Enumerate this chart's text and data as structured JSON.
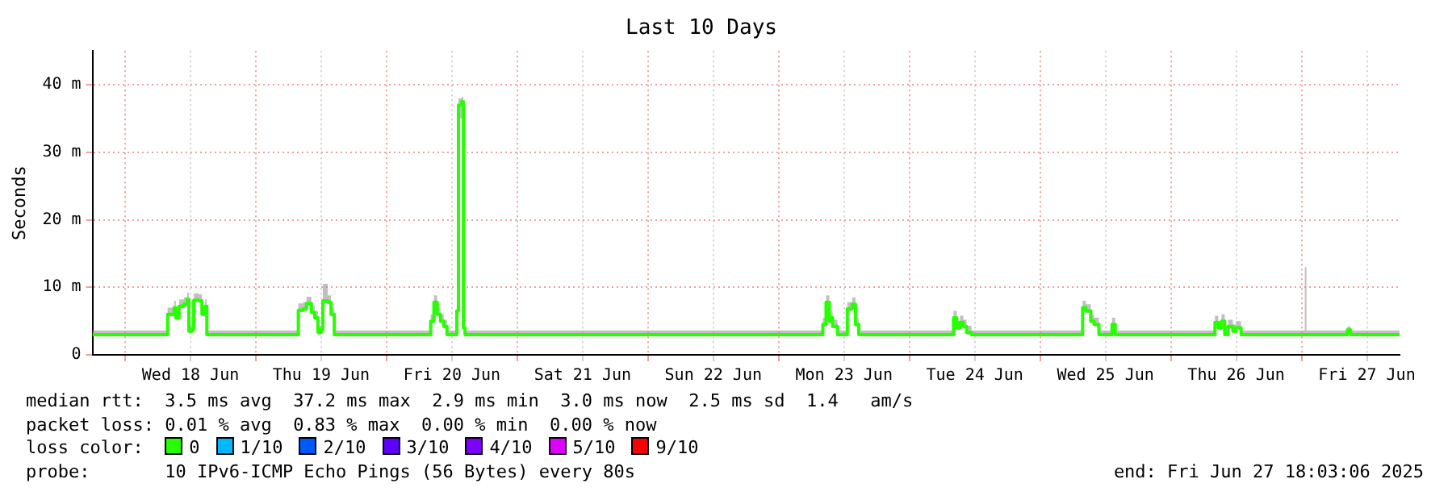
{
  "chart_data": {
    "type": "step",
    "title": "Last 10 Days",
    "ylabel": "Seconds",
    "legend_title": "loss color:",
    "legend": "bottom",
    "grid": true,
    "xlim": [
      "2025-06-17T18:00",
      "2025-06-27T18:00"
    ],
    "xticks": [
      {
        "value": "2025-06-18T00:00",
        "label": null
      },
      {
        "value": "2025-06-18T12:00",
        "label": "Wed 18 Jun"
      },
      {
        "value": "2025-06-19T00:00",
        "label": null
      },
      {
        "value": "2025-06-19T12:00",
        "label": "Thu 19 Jun"
      },
      {
        "value": "2025-06-20T00:00",
        "label": null
      },
      {
        "value": "2025-06-20T12:00",
        "label": "Fri 20 Jun"
      },
      {
        "value": "2025-06-21T00:00",
        "label": null
      },
      {
        "value": "2025-06-21T12:00",
        "label": "Sat 21 Jun"
      },
      {
        "value": "2025-06-22T00:00",
        "label": null
      },
      {
        "value": "2025-06-22T12:00",
        "label": "Sun 22 Jun"
      },
      {
        "value": "2025-06-23T00:00",
        "label": null
      },
      {
        "value": "2025-06-23T12:00",
        "label": "Mon 23 Jun"
      },
      {
        "value": "2025-06-24T00:00",
        "label": null
      },
      {
        "value": "2025-06-24T12:00",
        "label": "Tue 24 Jun"
      },
      {
        "value": "2025-06-25T00:00",
        "label": null
      },
      {
        "value": "2025-06-25T12:00",
        "label": "Wed 25 Jun"
      },
      {
        "value": "2025-06-26T00:00",
        "label": null
      },
      {
        "value": "2025-06-26T12:00",
        "label": "Thu 26 Jun"
      },
      {
        "value": "2025-06-27T00:00",
        "label": null
      },
      {
        "value": "2025-06-27T12:00",
        "label": "Fri 27 Jun"
      }
    ],
    "ylim": [
      0,
      45
    ],
    "yticks": [
      0,
      {
        "value": 10,
        "label": "10 m"
      },
      {
        "value": 20,
        "label": "20 m"
      },
      {
        "value": 30,
        "label": "30 m"
      },
      {
        "value": 40,
        "label": "40 m"
      }
    ],
    "x": [
      "2025-06-17T18:00",
      "2025-06-18T07:30",
      "2025-06-18T07:48",
      "2025-06-18T09:00",
      "2025-06-18T09:18",
      "2025-06-18T09:54",
      "2025-06-18T10:48",
      "2025-06-18T11:24",
      "2025-06-18T11:42",
      "2025-06-18T12:18",
      "2025-06-18T12:36",
      "2025-06-18T13:30",
      "2025-06-18T14:06",
      "2025-06-18T14:42",
      "2025-06-18T15:00",
      "2025-06-19T07:30",
      "2025-06-19T07:48",
      "2025-06-19T08:42",
      "2025-06-19T09:18",
      "2025-06-19T10:12",
      "2025-06-19T10:48",
      "2025-06-19T11:24",
      "2025-06-19T12:00",
      "2025-06-19T12:18",
      "2025-06-19T13:12",
      "2025-06-19T13:48",
      "2025-06-19T14:24",
      "2025-06-20T07:48",
      "2025-06-20T08:06",
      "2025-06-20T08:42",
      "2025-06-20T09:18",
      "2025-06-20T09:54",
      "2025-06-20T10:30",
      "2025-06-20T11:06",
      "2025-06-20T12:36",
      "2025-06-20T12:54",
      "2025-06-20T13:12",
      "2025-06-20T13:48",
      "2025-06-20T14:06",
      "2025-06-20T14:24",
      "2025-06-23T07:48",
      "2025-06-23T08:06",
      "2025-06-23T08:42",
      "2025-06-23T09:18",
      "2025-06-23T09:36",
      "2025-06-23T09:54",
      "2025-06-23T10:48",
      "2025-06-23T12:18",
      "2025-06-23T12:36",
      "2025-06-23T13:30",
      "2025-06-23T14:06",
      "2025-06-23T14:42",
      "2025-06-24T07:48",
      "2025-06-24T08:06",
      "2025-06-24T08:42",
      "2025-06-24T09:18",
      "2025-06-24T09:54",
      "2025-06-24T10:30",
      "2025-06-24T11:24",
      "2025-06-25T07:30",
      "2025-06-25T07:48",
      "2025-06-25T08:24",
      "2025-06-25T09:18",
      "2025-06-25T09:54",
      "2025-06-25T10:48",
      "2025-06-25T12:18",
      "2025-06-25T13:12",
      "2025-06-25T13:48",
      "2025-06-26T07:48",
      "2025-06-26T08:06",
      "2025-06-26T08:42",
      "2025-06-26T09:18",
      "2025-06-26T09:54",
      "2025-06-26T10:30",
      "2025-06-26T11:24",
      "2025-06-26T12:00",
      "2025-06-26T12:54",
      "2025-06-27T00:18",
      "2025-06-27T00:36",
      "2025-06-27T00:54",
      "2025-06-27T08:06",
      "2025-06-27T08:24",
      "2025-06-27T09:00",
      "2025-06-27T18:00"
    ],
    "series": [
      {
        "name": "0",
        "color": "#26ff00",
        "values": [
          3.0,
          3.0,
          6.0,
          7.0,
          5.5,
          7.2,
          7.5,
          8.2,
          3.5,
          3.8,
          8.1,
          8.0,
          6.0,
          7.2,
          3.0,
          3.0,
          6.6,
          6.8,
          7.6,
          6.3,
          5.5,
          3.3,
          3.8,
          8.0,
          7.8,
          6.0,
          3.0,
          3.0,
          5.0,
          7.8,
          6.0,
          5.0,
          4.2,
          3.0,
          3.0,
          6.5,
          37.0,
          37.5,
          4.0,
          3.0,
          3.0,
          4.5,
          7.8,
          5.0,
          5.5,
          4.2,
          3.0,
          3.0,
          6.8,
          7.5,
          4.5,
          3.0,
          3.0,
          5.5,
          4.0,
          4.8,
          4.2,
          3.3,
          3.0,
          3.0,
          7.0,
          6.5,
          5.0,
          4.5,
          3.0,
          3.0,
          4.5,
          3.0,
          3.0,
          4.8,
          4.0,
          5.0,
          3.0,
          4.2,
          3.5,
          4.0,
          3.0,
          3.0,
          3.0,
          3.0,
          3.0,
          3.7,
          3.0,
          3.0
        ],
        "upper": [
          3.6,
          3.6,
          7.0,
          8.0,
          6.5,
          8.2,
          8.5,
          9.2,
          4.5,
          4.8,
          9.1,
          9.0,
          7.0,
          8.2,
          3.6,
          3.6,
          7.6,
          7.8,
          8.6,
          7.3,
          6.5,
          4.3,
          4.8,
          10.5,
          8.8,
          7.0,
          3.6,
          3.6,
          6.0,
          8.8,
          7.0,
          6.0,
          5.2,
          3.6,
          3.6,
          7.5,
          38.0,
          38.2,
          5.0,
          3.6,
          3.6,
          5.5,
          8.8,
          6.0,
          6.5,
          5.2,
          3.6,
          3.6,
          7.8,
          8.5,
          5.5,
          3.6,
          3.6,
          6.5,
          5.0,
          5.8,
          5.2,
          4.3,
          3.6,
          3.6,
          8.0,
          7.5,
          6.0,
          5.5,
          3.6,
          3.6,
          5.5,
          3.6,
          3.6,
          5.8,
          5.0,
          6.0,
          3.6,
          5.2,
          4.5,
          5.0,
          3.6,
          3.6,
          13.0,
          3.6,
          3.6,
          4.2,
          3.6,
          3.6
        ],
        "lower": [
          2.8,
          2.8,
          5.7,
          6.7,
          5.2,
          6.9,
          7.2,
          7.9,
          3.2,
          3.5,
          7.8,
          7.7,
          5.7,
          6.9,
          2.8,
          2.8,
          6.3,
          6.5,
          7.3,
          6.0,
          5.2,
          3.0,
          3.5,
          7.7,
          7.5,
          5.7,
          2.8,
          2.8,
          4.7,
          7.5,
          5.7,
          4.7,
          3.9,
          2.8,
          2.8,
          6.2,
          35.0,
          36.0,
          3.7,
          2.8,
          2.8,
          4.2,
          7.5,
          4.7,
          5.2,
          3.9,
          2.8,
          2.8,
          6.5,
          7.2,
          4.2,
          2.8,
          2.8,
          5.2,
          3.7,
          4.5,
          3.9,
          3.0,
          2.8,
          2.8,
          6.7,
          6.2,
          4.7,
          4.2,
          2.8,
          2.8,
          4.2,
          2.8,
          2.8,
          4.5,
          3.7,
          4.7,
          2.8,
          3.9,
          3.2,
          3.7,
          2.8,
          2.8,
          2.8,
          2.8,
          2.8,
          3.4,
          2.8,
          2.8
        ]
      },
      {
        "name": "1/10",
        "color": "#00b8ff",
        "values": [
          null,
          null,
          null,
          null,
          null,
          null,
          null,
          null,
          null,
          null,
          null,
          null,
          null,
          null,
          null,
          null,
          null,
          null,
          null,
          null,
          null,
          null,
          null,
          null,
          null,
          null,
          null,
          null,
          null,
          null,
          null,
          null,
          null,
          null,
          null,
          null,
          null,
          null,
          null,
          null,
          null,
          null,
          null,
          null,
          null,
          null,
          null,
          null,
          null,
          null,
          null,
          null,
          null,
          null,
          null,
          null,
          null,
          null,
          null,
          null,
          null,
          null,
          null,
          null,
          null,
          null,
          null,
          null,
          null,
          null,
          null,
          null,
          null,
          null,
          null,
          null,
          null,
          null,
          null,
          null,
          null,
          null,
          null,
          null
        ]
      },
      {
        "name": "2/10",
        "color": "#0059ff",
        "values": [
          null,
          null,
          null,
          null,
          null,
          null,
          null,
          null,
          null,
          null,
          null,
          null,
          null,
          null,
          null,
          null,
          null,
          null,
          null,
          null,
          null,
          null,
          null,
          null,
          null,
          null,
          null,
          null,
          null,
          null,
          null,
          null,
          null,
          null,
          null,
          null,
          null,
          null,
          null,
          null,
          null,
          null,
          null,
          null,
          null,
          null,
          null,
          null,
          null,
          null,
          null,
          null,
          null,
          null,
          null,
          null,
          null,
          null,
          null,
          null,
          null,
          null,
          null,
          null,
          null,
          null,
          null,
          null,
          null,
          null,
          null,
          null,
          null,
          null,
          null,
          null,
          null,
          null,
          null,
          null,
          null,
          null,
          null,
          null
        ]
      },
      {
        "name": "3/10",
        "color": "#5e00ff",
        "values": [
          null,
          null,
          null,
          null,
          null,
          null,
          null,
          null,
          null,
          null,
          null,
          null,
          null,
          null,
          null,
          null,
          null,
          null,
          null,
          null,
          null,
          null,
          null,
          null,
          null,
          null,
          null,
          null,
          null,
          null,
          null,
          null,
          null,
          null,
          null,
          null,
          null,
          null,
          null,
          null,
          null,
          null,
          null,
          null,
          null,
          null,
          null,
          null,
          null,
          null,
          null,
          null,
          null,
          null,
          null,
          null,
          null,
          null,
          null,
          null,
          null,
          null,
          null,
          null,
          null,
          null,
          null,
          null,
          null,
          null,
          null,
          null,
          null,
          null,
          null,
          null,
          null,
          null,
          null,
          null,
          null,
          null,
          null,
          null
        ]
      },
      {
        "name": "4/10",
        "color": "#7e00ff",
        "values": [
          null,
          null,
          null,
          null,
          null,
          null,
          null,
          null,
          null,
          null,
          null,
          null,
          null,
          null,
          null,
          null,
          null,
          null,
          null,
          null,
          null,
          null,
          null,
          null,
          null,
          null,
          null,
          null,
          null,
          null,
          null,
          null,
          null,
          null,
          null,
          null,
          null,
          null,
          null,
          null,
          null,
          null,
          null,
          null,
          null,
          null,
          null,
          null,
          null,
          null,
          null,
          null,
          null,
          null,
          null,
          null,
          null,
          null,
          null,
          null,
          null,
          null,
          null,
          null,
          null,
          null,
          null,
          null,
          null,
          null,
          null,
          null,
          null,
          null,
          null,
          null,
          null,
          null,
          null,
          null,
          null,
          null,
          null,
          null
        ]
      },
      {
        "name": "5/10",
        "color": "#dd00ff",
        "values": [
          null,
          null,
          null,
          null,
          null,
          null,
          null,
          null,
          null,
          null,
          null,
          null,
          null,
          null,
          null,
          null,
          null,
          null,
          null,
          null,
          null,
          null,
          null,
          null,
          null,
          null,
          null,
          null,
          null,
          null,
          null,
          null,
          null,
          null,
          null,
          null,
          null,
          null,
          null,
          null,
          null,
          null,
          null,
          null,
          null,
          null,
          null,
          null,
          null,
          null,
          null,
          null,
          null,
          null,
          null,
          null,
          null,
          null,
          null,
          null,
          null,
          null,
          null,
          null,
          null,
          null,
          null,
          null,
          null,
          null,
          null,
          null,
          null,
          null,
          null,
          null,
          null,
          null,
          null,
          null,
          null,
          null,
          null,
          null
        ]
      },
      {
        "name": "9/10",
        "color": "#ff0000",
        "values": [
          null,
          null,
          null,
          null,
          null,
          null,
          null,
          null,
          null,
          null,
          null,
          null,
          null,
          null,
          null,
          null,
          null,
          null,
          null,
          null,
          null,
          null,
          null,
          null,
          null,
          null,
          null,
          null,
          null,
          null,
          null,
          null,
          null,
          null,
          null,
          null,
          null,
          null,
          null,
          null,
          null,
          null,
          null,
          null,
          null,
          null,
          null,
          null,
          null,
          null,
          null,
          null,
          null,
          null,
          null,
          null,
          null,
          null,
          null,
          null,
          null,
          null,
          null,
          null,
          null,
          null,
          null,
          null,
          null,
          null,
          null,
          null,
          null,
          null,
          null,
          null,
          null,
          null,
          null,
          null,
          null,
          null,
          null,
          null
        ]
      }
    ],
    "annotations": [
      "median rtt:  3.5 ms avg  37.2 ms max  2.9 ms min  3.0 ms now  2.5 ms sd  1.4   am/s",
      "packet loss: 0.01 % avg  0.83 % max  0.00 % min  0.00 % now",
      "probe:       10 IPv6-ICMP Echo Pings (56 Bytes) every 80s",
      "end: Fri Jun 27 18:03:06 2025"
    ]
  }
}
